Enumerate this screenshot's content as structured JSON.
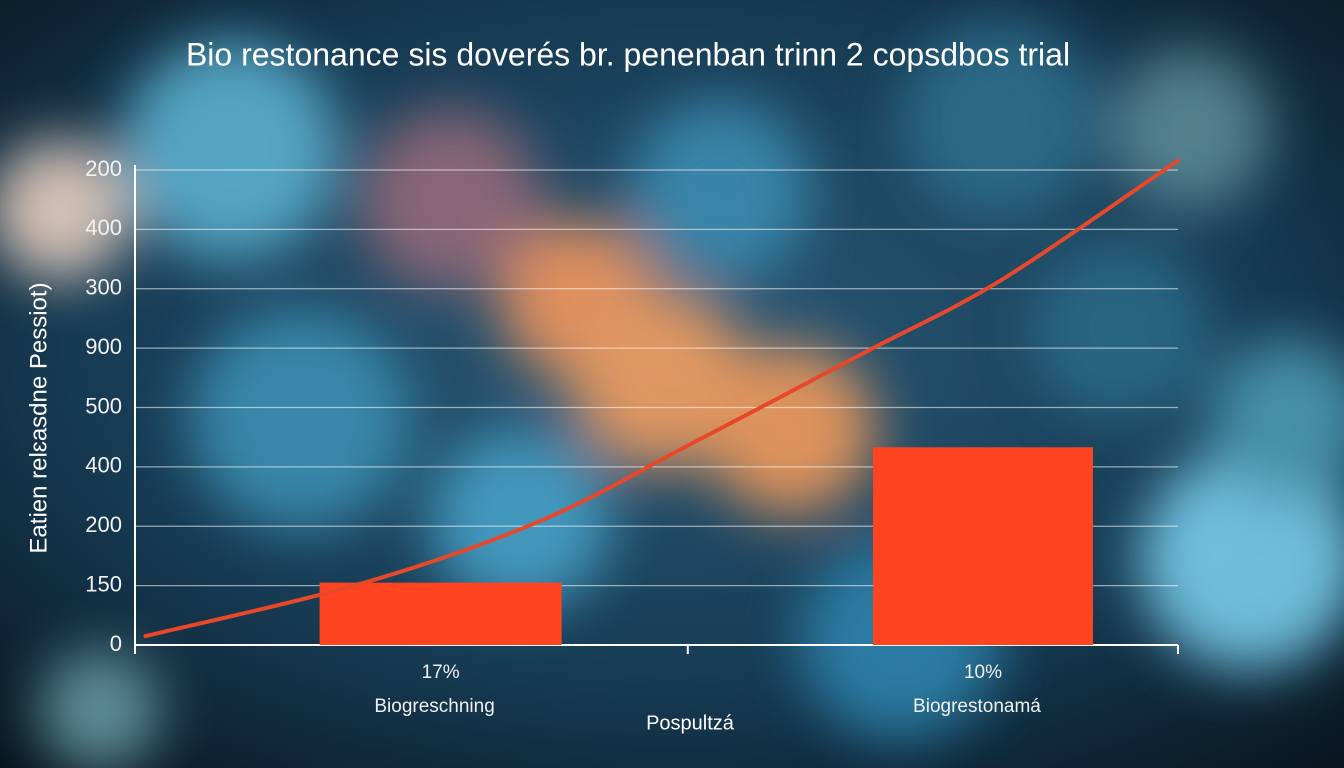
{
  "chart_data": {
    "type": "bar",
    "title": "Bio restonance sis doverés br. penenban trinn 2 copsdbos trial",
    "ylabel": "Eatien relɛasdne Pessiot)",
    "xlabel": "Pospultzá",
    "xlim": [
      0,
      10
    ],
    "xticks": [
      0,
      5.3,
      10
    ],
    "ylim": [
      0,
      8
    ],
    "yticks": [
      {
        "value": 0,
        "label": "0"
      },
      {
        "value": 1,
        "label": "150"
      },
      {
        "value": 2,
        "label": "200"
      },
      {
        "value": 3,
        "label": "400"
      },
      {
        "value": 4,
        "label": "500"
      },
      {
        "value": 5,
        "label": "900"
      },
      {
        "value": 6,
        "label": "300"
      },
      {
        "value": 7,
        "label": "400"
      },
      {
        "value": 8,
        "label": "200"
      }
    ],
    "grid": true,
    "categories": [
      "Biogreschning",
      "Biogrestonamá"
    ],
    "category_labels": [
      "17%",
      "10%"
    ],
    "bar_x": [
      2.93,
      8.13
    ],
    "values": [
      1.05,
      3.33
    ],
    "color": "#ff4422",
    "line": {
      "color": "#e8482a",
      "x": [
        0.1,
        2.2,
        3.9,
        5.4,
        7.0,
        8.3,
        10
      ],
      "values": [
        0.15,
        1.05,
        2.1,
        3.45,
        4.93,
        6.14,
        8.16
      ]
    }
  }
}
